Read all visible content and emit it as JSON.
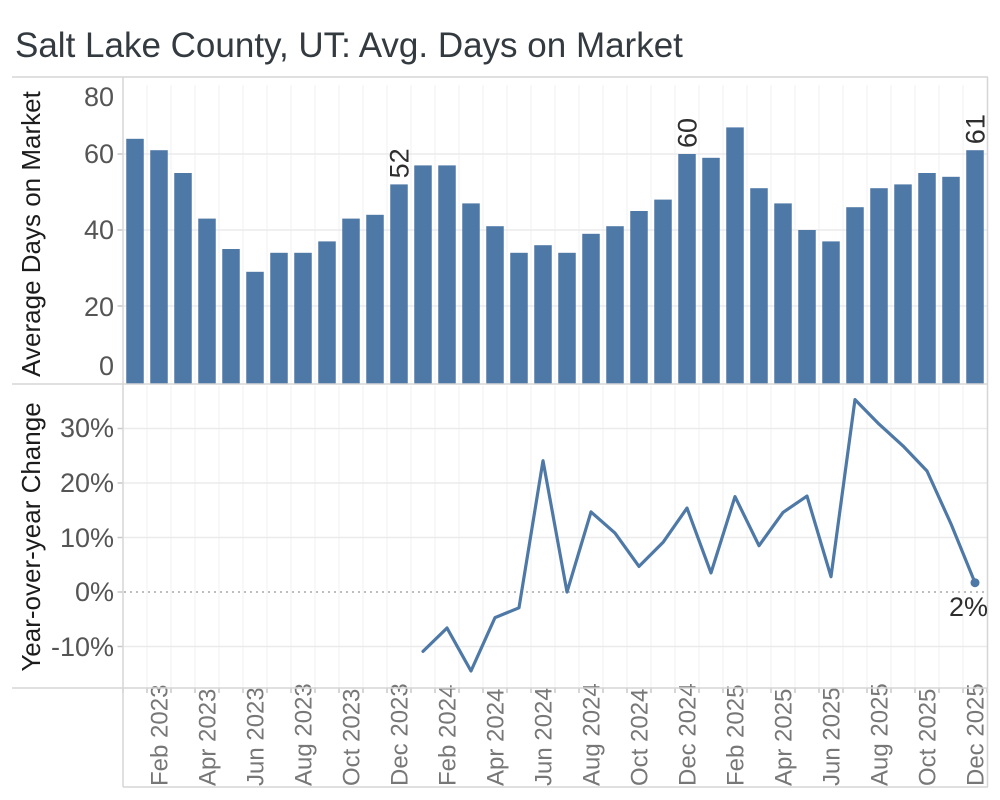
{
  "title": "Salt Lake County, UT: Avg. Days on Market",
  "colors": {
    "bar": "#4e79a7",
    "line": "#4e79a7",
    "grid": "#ebebeb",
    "faint_column_grid": "#f2f2f2",
    "zero_line": "#a8a8a8",
    "border": "#d6d6d6",
    "tick_mark": "#c9c9c9"
  },
  "x_axis": {
    "tick_labels": [
      "Feb 2023",
      "Apr 2023",
      "Jun 2023",
      "Aug 2023",
      "Oct 2023",
      "Dec 2023",
      "Feb 2024",
      "Apr 2024",
      "Jun 2024",
      "Aug 2024",
      "Oct 2024",
      "Dec 2024",
      "Feb 2025",
      "Apr 2025",
      "Jun 2025",
      "Aug 2025",
      "Oct 2025",
      "Dec 2025"
    ]
  },
  "chart_data": [
    {
      "type": "bar",
      "title": "Salt Lake County, UT: Avg. Days on Market",
      "ylabel": "Average Days on Market",
      "xlabel": "",
      "ylim": [
        0,
        80
      ],
      "grid": "horizontal, light",
      "yticks": [
        0,
        20,
        40,
        60,
        80
      ],
      "ytick_labels": [
        "80",
        "60",
        "40",
        "20",
        "0"
      ],
      "color": "#4e79a7",
      "categories": [
        "Jan 2023",
        "Feb 2023",
        "Mar 2023",
        "Apr 2023",
        "May 2023",
        "Jun 2023",
        "Jul 2023",
        "Aug 2023",
        "Sep 2023",
        "Oct 2023",
        "Nov 2023",
        "Dec 2023",
        "Jan 2024",
        "Feb 2024",
        "Mar 2024",
        "Apr 2024",
        "May 2024",
        "Jun 2024",
        "Jul 2024",
        "Aug 2024",
        "Sep 2024",
        "Oct 2024",
        "Nov 2024",
        "Dec 2024",
        "Jan 2025",
        "Feb 2025",
        "Mar 2025",
        "Apr 2025",
        "May 2025",
        "Jun 2025",
        "Jul 2025",
        "Aug 2025",
        "Sep 2025",
        "Oct 2025",
        "Nov 2025",
        "Dec 2025"
      ],
      "values": [
        64,
        61,
        55,
        43,
        35,
        29,
        34,
        34,
        37,
        43,
        44,
        52,
        57,
        57,
        47,
        41,
        34,
        36,
        34,
        39,
        41,
        45,
        48,
        60,
        59,
        67,
        51,
        47,
        40,
        37,
        46,
        51,
        52,
        55,
        54,
        61
      ],
      "annotations": [
        {
          "category": "Dec 2023",
          "value": 52,
          "label": "52"
        },
        {
          "category": "Dec 2024",
          "value": 60,
          "label": "60"
        },
        {
          "category": "Dec 2025",
          "value": 61,
          "label": "61"
        }
      ]
    },
    {
      "type": "line",
      "ylabel": "Year-over-year Change",
      "xlabel": "",
      "ylim": [
        -17.8,
        37.8
      ],
      "grid": "horizontal, light; dotted line at 0%",
      "yticks_percent": [
        -10,
        0,
        10,
        20,
        30
      ],
      "ytick_labels": [
        "30%",
        "20%",
        "10%",
        "0%",
        "-10%"
      ],
      "color": "#4e79a7",
      "start_category": "Jan 2024",
      "x": [
        "Jan 2024",
        "Feb 2024",
        "Mar 2024",
        "Apr 2024",
        "May 2024",
        "Jun 2024",
        "Jul 2024",
        "Aug 2024",
        "Sep 2024",
        "Oct 2024",
        "Nov 2024",
        "Dec 2024",
        "Jan 2025",
        "Feb 2025",
        "Mar 2025",
        "Apr 2025",
        "May 2025",
        "Jun 2025",
        "Jul 2025",
        "Aug 2025",
        "Sep 2025",
        "Oct 2025",
        "Nov 2025",
        "Dec 2025"
      ],
      "values_percent": [
        -10.9,
        -6.6,
        -14.5,
        -4.7,
        -2.9,
        24.1,
        0,
        14.7,
        10.8,
        4.7,
        9.1,
        15.4,
        3.5,
        17.5,
        8.5,
        14.6,
        17.6,
        2.8,
        35.3,
        30.8,
        26.8,
        22.2,
        12.5,
        1.7
      ],
      "end_annotation": {
        "category": "Dec 2025",
        "label": "2%",
        "marker": "dot"
      }
    }
  ]
}
